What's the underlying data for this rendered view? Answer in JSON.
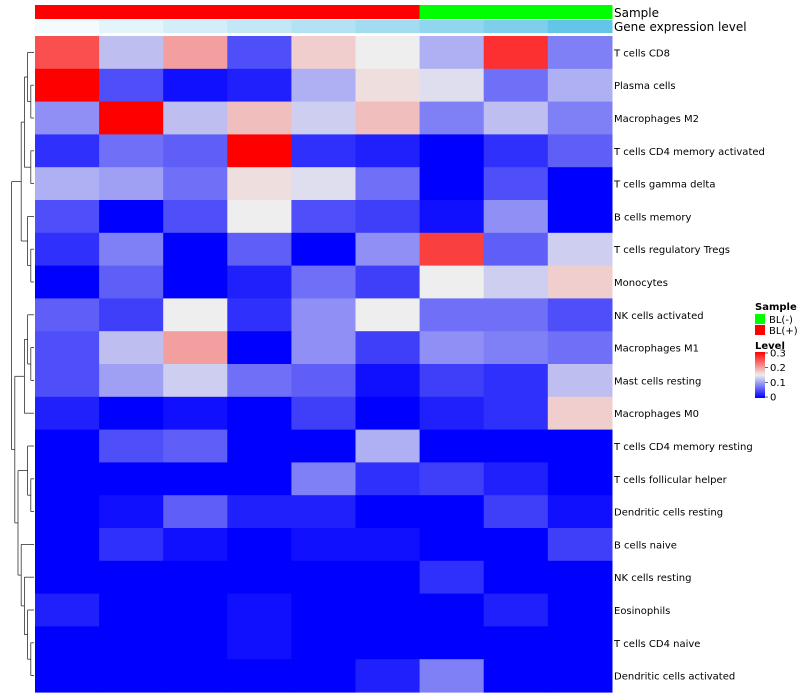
{
  "chart_data": {
    "type": "heatmap",
    "annotation_rows": [
      {
        "label": "Sample",
        "colors": [
          "#ff0000",
          "#ff0000",
          "#ff0000",
          "#ff0000",
          "#ff0000",
          "#ff0000",
          "#00ff00",
          "#00ff00",
          "#00ff00"
        ]
      },
      {
        "label": "Gene expression level",
        "colors": [
          "#f4fbfe",
          "#e3f4fb",
          "#d3eef8",
          "#c2e8f6",
          "#b2e2f3",
          "#a2dcf1",
          "#91d6ee",
          "#7fcfec",
          "#63c5e8"
        ]
      }
    ],
    "rows": [
      "T cells CD8",
      "Plasma cells",
      "Macrophages M2",
      "T cells CD4 memory activated",
      "T cells gamma delta",
      "B cells memory",
      "T cells regulatory  Tregs",
      "Monocytes",
      "NK cells activated",
      "Macrophages M1",
      "Mast cells resting",
      "Macrophages M0",
      "T cells CD4 memory resting",
      "T cells follicular helper",
      "Dendritic cells resting",
      "B cells naive",
      "NK cells resting",
      "Eosinophils",
      "T cells CD4 naive",
      "Dendritic cells activated"
    ],
    "values": [
      [
        0.25,
        0.12,
        0.2,
        0.05,
        0.17,
        0.15,
        0.11,
        0.27,
        0.08
      ],
      [
        0.33,
        0.05,
        0.01,
        0.02,
        0.11,
        0.16,
        0.14,
        0.07,
        0.11
      ],
      [
        0.09,
        0.3,
        0.12,
        0.18,
        0.13,
        0.18,
        0.08,
        0.12,
        0.08
      ],
      [
        0.03,
        0.07,
        0.06,
        0.33,
        0.03,
        0.02,
        0.0,
        0.03,
        0.06
      ],
      [
        0.11,
        0.1,
        0.07,
        0.16,
        0.14,
        0.07,
        0.0,
        0.05,
        0.0
      ],
      [
        0.05,
        0.0,
        0.05,
        0.15,
        0.05,
        0.04,
        0.01,
        0.09,
        0.0
      ],
      [
        0.03,
        0.08,
        0.0,
        0.06,
        0.0,
        0.09,
        0.26,
        0.06,
        0.13
      ],
      [
        0.0,
        0.06,
        0.0,
        0.02,
        0.07,
        0.04,
        0.15,
        0.13,
        0.17
      ],
      [
        0.06,
        0.04,
        0.15,
        0.03,
        0.09,
        0.15,
        0.07,
        0.07,
        0.05
      ],
      [
        0.05,
        0.12,
        0.2,
        0.0,
        0.09,
        0.04,
        0.09,
        0.08,
        0.07
      ],
      [
        0.05,
        0.1,
        0.13,
        0.07,
        0.06,
        0.01,
        0.04,
        0.03,
        0.12
      ],
      [
        0.02,
        0.0,
        0.01,
        0.0,
        0.04,
        0.0,
        0.02,
        0.03,
        0.17
      ],
      [
        0.0,
        0.05,
        0.06,
        0.0,
        0.0,
        0.11,
        0.0,
        0.0,
        0.0
      ],
      [
        0.0,
        0.0,
        0.0,
        0.0,
        0.08,
        0.03,
        0.04,
        0.02,
        0.0
      ],
      [
        0.0,
        0.01,
        0.06,
        0.02,
        0.02,
        0.0,
        0.0,
        0.04,
        0.01
      ],
      [
        0.0,
        0.03,
        0.01,
        0.0,
        0.01,
        0.01,
        0.0,
        0.0,
        0.04
      ],
      [
        0.0,
        0.0,
        0.0,
        0.0,
        0.0,
        0.0,
        0.03,
        0.0,
        0.0
      ],
      [
        0.02,
        0.0,
        0.0,
        0.01,
        0.0,
        0.0,
        0.0,
        0.02,
        0.0
      ],
      [
        0.0,
        0.0,
        0.0,
        0.01,
        0.0,
        0.0,
        0.0,
        0.0,
        0.0
      ],
      [
        0.0,
        0.0,
        0.0,
        0.0,
        0.0,
        0.02,
        0.08,
        0.0,
        0.0
      ]
    ],
    "color_scale": {
      "min": 0,
      "mid": 0.15,
      "max": 0.3,
      "low_color": "#0000ff",
      "mid_color": "#eeeeee",
      "high_color": "#ff0000"
    },
    "legend": {
      "placement": "right",
      "sample_title": "Sample",
      "sample_entries": [
        {
          "label": "BL(-)",
          "color": "#00ff00"
        },
        {
          "label": "BL(+)",
          "color": "#ff0000"
        }
      ],
      "level_title": "Level",
      "level_ticks": [
        {
          "label": "0.3",
          "value": 0.3
        },
        {
          "label": "0.2",
          "value": 0.2
        },
        {
          "label": "0.1",
          "value": 0.1
        },
        {
          "label": "0",
          "value": 0
        }
      ]
    },
    "dendrogram": "row",
    "grid": false
  }
}
